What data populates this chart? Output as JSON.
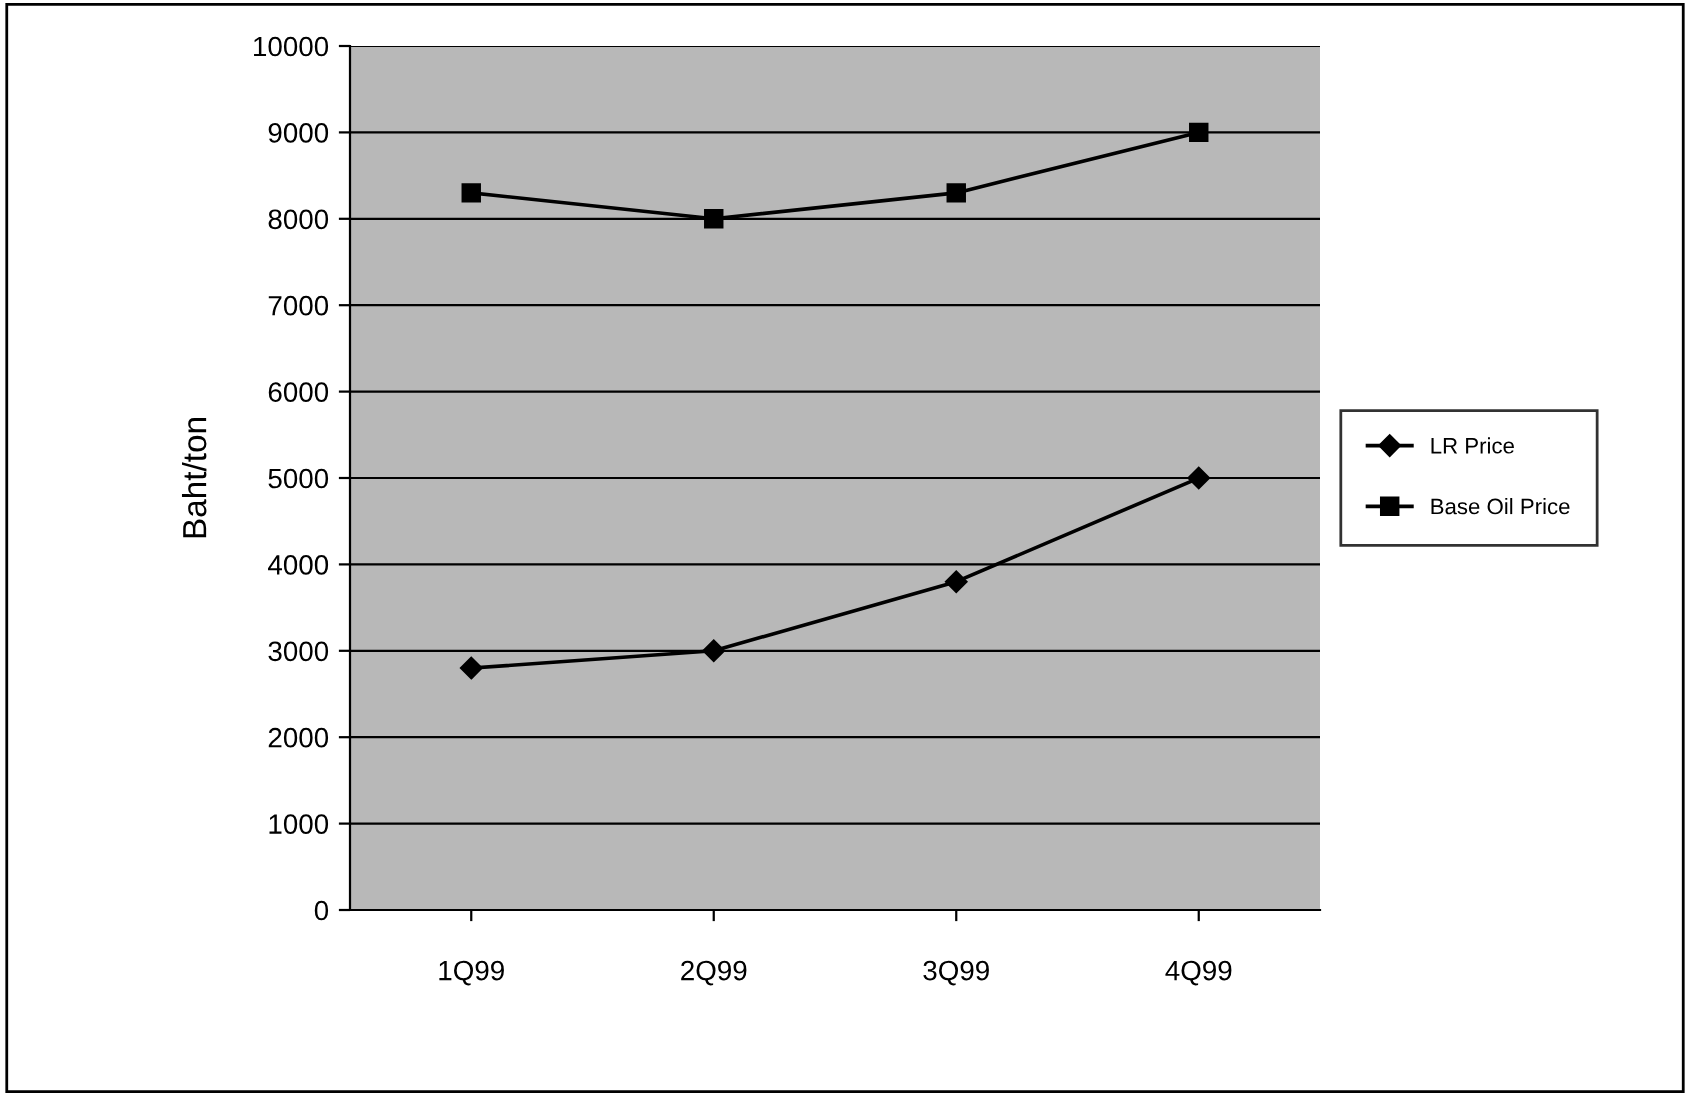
{
  "chart_data": {
    "type": "line",
    "ylabel": "Baht/ton",
    "categories": [
      "1Q99",
      "2Q99",
      "3Q99",
      "4Q99"
    ],
    "series": [
      {
        "name": "LR Price",
        "color": "#000000",
        "marker": "diamond",
        "values": [
          2800,
          3000,
          3800,
          5000
        ]
      },
      {
        "name": "Base Oil Price",
        "color": "#000000",
        "marker": "square",
        "values": [
          8300,
          8000,
          8300,
          9000
        ]
      }
    ],
    "ylim": [
      0,
      10000
    ],
    "yticks": [
      0,
      1000,
      2000,
      3000,
      4000,
      5000,
      6000,
      7000,
      8000,
      9000,
      10000
    ],
    "grid": "y",
    "legend": "right",
    "line_style": "solid"
  }
}
